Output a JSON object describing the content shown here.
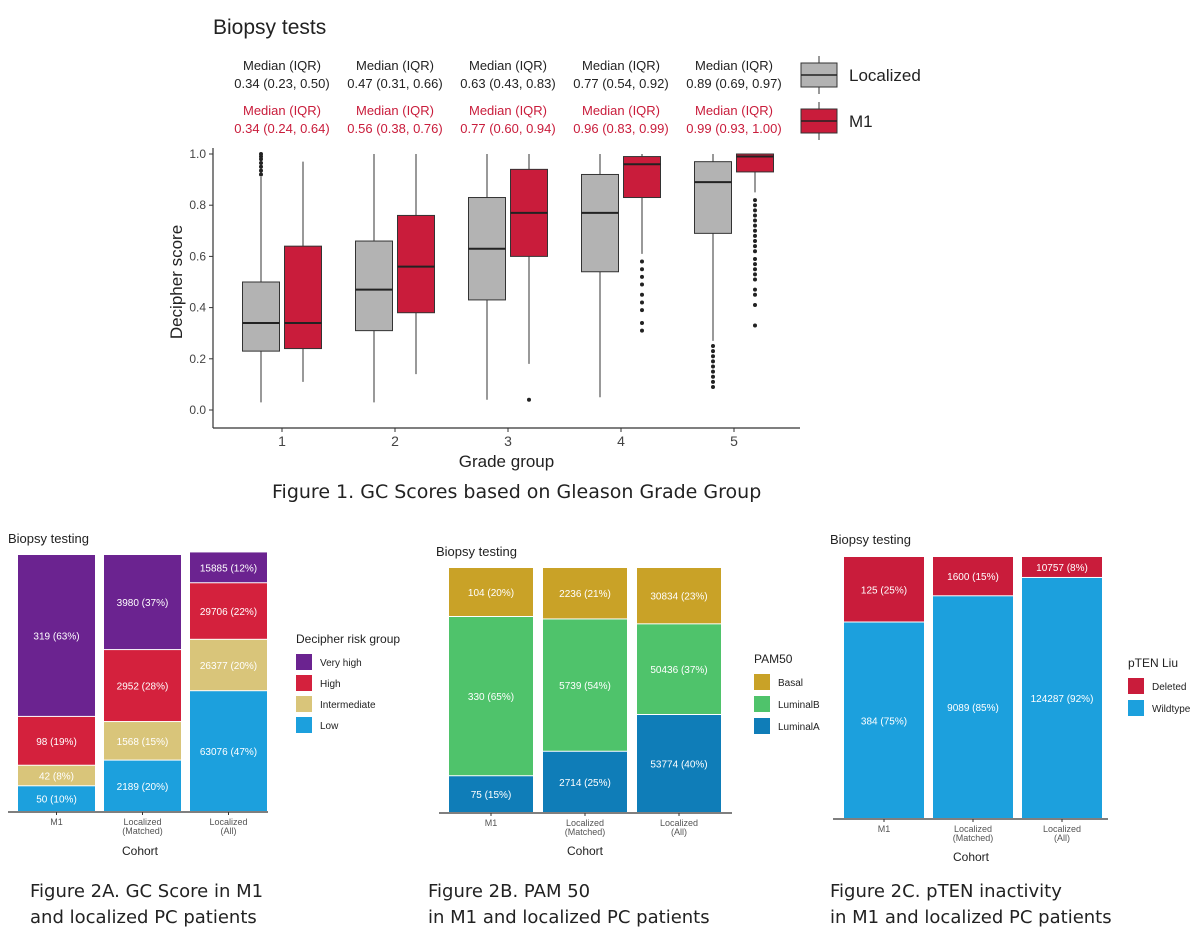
{
  "colors": {
    "localized": "#b3b3b3",
    "m1": "#c91c3b",
    "very_high": "#6b2390",
    "high": "#d4213d",
    "intermediate": "#d9c57a",
    "low": "#1ca0dd",
    "basal": "#c9a227",
    "luminal_b": "#4fc36b",
    "luminal_a": "#0f7db8",
    "deleted": "#c91c3b",
    "wildtype": "#1ca0dd",
    "median_red": "#c91c3b"
  },
  "figure1": {
    "caption": "Figure 1. GC Scores based on Gleason Grade Group"
  },
  "figure2a": {
    "caption_line1": "Figure 2A. GC Score in M1",
    "caption_line2": "and localized PC patients"
  },
  "figure2b": {
    "caption_line1": "Figure 2B.  PAM 50",
    "caption_line2": "in M1 and localized PC patients"
  },
  "figure2c": {
    "caption_line1": "Figure 2C. pTEN inactivity",
    "caption_line2": "in M1 and localized PC patients"
  },
  "chart_data": [
    {
      "type": "box",
      "title": "Biopsy tests",
      "xlabel": "Grade group",
      "ylabel": "Decipher score",
      "ylim": [
        0,
        1
      ],
      "yticks": [
        "0.0",
        "0.2",
        "0.4",
        "0.6",
        "0.8",
        "1.0"
      ],
      "categories": [
        "1",
        "2",
        "3",
        "4",
        "5"
      ],
      "legend": {
        "placement": "right",
        "entries": [
          "Localized",
          "M1"
        ]
      },
      "annotations": {
        "localized": [
          {
            "label": "Median (IQR)",
            "value": "0.34 (0.23, 0.50)"
          },
          {
            "label": "Median (IQR)",
            "value": "0.47 (0.31, 0.66)"
          },
          {
            "label": "Median (IQR)",
            "value": "0.63 (0.43, 0.83)"
          },
          {
            "label": "Median (IQR)",
            "value": "0.77 (0.54, 0.92)"
          },
          {
            "label": "Median (IQR)",
            "value": "0.89 (0.69, 0.97)"
          }
        ],
        "m1": [
          {
            "label": "Median (IQR)",
            "value": "0.34 (0.24, 0.64)"
          },
          {
            "label": "Median (IQR)",
            "value": "0.56 (0.38, 0.76)"
          },
          {
            "label": "Median (IQR)",
            "value": "0.77 (0.60, 0.94)"
          },
          {
            "label": "Median (IQR)",
            "value": "0.96 (0.83, 0.99)"
          },
          {
            "label": "Median (IQR)",
            "value": "0.99 (0.93, 1.00)"
          }
        ]
      },
      "series": [
        {
          "name": "Localized",
          "boxes": [
            {
              "q1": 0.23,
              "median": 0.34,
              "q3": 0.5,
              "whisker_low": 0.03,
              "whisker_high": 0.91,
              "outliers": [
                0.92,
                0.935,
                0.95,
                0.965,
                0.98,
                0.99,
                1.0
              ]
            },
            {
              "q1": 0.31,
              "median": 0.47,
              "q3": 0.66,
              "whisker_low": 0.03,
              "whisker_high": 1.0,
              "outliers": []
            },
            {
              "q1": 0.43,
              "median": 0.63,
              "q3": 0.83,
              "whisker_low": 0.04,
              "whisker_high": 1.0,
              "outliers": []
            },
            {
              "q1": 0.54,
              "median": 0.77,
              "q3": 0.92,
              "whisker_low": 0.05,
              "whisker_high": 1.0,
              "outliers": []
            },
            {
              "q1": 0.69,
              "median": 0.89,
              "q3": 0.97,
              "whisker_low": 0.27,
              "whisker_high": 1.0,
              "outliers": [
                0.09,
                0.11,
                0.13,
                0.15,
                0.17,
                0.19,
                0.21,
                0.23,
                0.25
              ]
            }
          ]
        },
        {
          "name": "M1",
          "boxes": [
            {
              "q1": 0.24,
              "median": 0.34,
              "q3": 0.64,
              "whisker_low": 0.11,
              "whisker_high": 0.97,
              "outliers": []
            },
            {
              "q1": 0.38,
              "median": 0.56,
              "q3": 0.76,
              "whisker_low": 0.14,
              "whisker_high": 1.0,
              "outliers": []
            },
            {
              "q1": 0.6,
              "median": 0.77,
              "q3": 0.94,
              "whisker_low": 0.18,
              "whisker_high": 1.0,
              "outliers": [
                0.04
              ]
            },
            {
              "q1": 0.83,
              "median": 0.96,
              "q3": 0.99,
              "whisker_low": 0.61,
              "whisker_high": 1.0,
              "outliers": [
                0.31,
                0.34,
                0.39,
                0.42,
                0.45,
                0.49,
                0.52,
                0.55,
                0.58
              ]
            },
            {
              "q1": 0.93,
              "median": 0.99,
              "q3": 1.0,
              "whisker_low": 0.85,
              "whisker_high": 1.0,
              "outliers": [
                0.33,
                0.41,
                0.45,
                0.47,
                0.51,
                0.53,
                0.55,
                0.57,
                0.59,
                0.62,
                0.64,
                0.66,
                0.68,
                0.7,
                0.72,
                0.74,
                0.76,
                0.78,
                0.8,
                0.82
              ]
            }
          ]
        }
      ]
    },
    {
      "type": "bar",
      "stacked": true,
      "title": "Biopsy testing",
      "xlabel": "Cohort",
      "categories": [
        "M1",
        "Localized (Matched)",
        "Localized (All)"
      ],
      "legend": {
        "title": "Decipher risk group",
        "placement": "right",
        "entries": [
          "Very high",
          "High",
          "Intermediate",
          "Low"
        ]
      },
      "series": [
        {
          "name": "Low",
          "values": [
            0.1,
            0.2,
            0.47
          ],
          "labels": [
            "50 (10%)",
            "2189 (20%)",
            "63076 (47%)"
          ]
        },
        {
          "name": "Intermediate",
          "values": [
            0.08,
            0.15,
            0.2
          ],
          "labels": [
            "42 (8%)",
            "1568 (15%)",
            "26377 (20%)"
          ]
        },
        {
          "name": "High",
          "values": [
            0.19,
            0.28,
            0.22
          ],
          "labels": [
            "98 (19%)",
            "2952 (28%)",
            "29706 (22%)"
          ]
        },
        {
          "name": "Very high",
          "values": [
            0.63,
            0.37,
            0.12
          ],
          "labels": [
            "319 (63%)",
            "3980 (37%)",
            "15885 (12%)"
          ]
        }
      ]
    },
    {
      "type": "bar",
      "stacked": true,
      "title": "Biopsy testing",
      "xlabel": "Cohort",
      "categories": [
        "M1",
        "Localized (Matched)",
        "Localized (All)"
      ],
      "legend": {
        "title": "PAM50",
        "placement": "right",
        "entries": [
          "Basal",
          "LuminalB",
          "LuminalA"
        ]
      },
      "series": [
        {
          "name": "LuminalA",
          "values": [
            0.15,
            0.25,
            0.4
          ],
          "labels": [
            "75 (15%)",
            "2714 (25%)",
            "53774 (40%)"
          ]
        },
        {
          "name": "LuminalB",
          "values": [
            0.65,
            0.54,
            0.37
          ],
          "labels": [
            "330 (65%)",
            "5739 (54%)",
            "50436 (37%)"
          ]
        },
        {
          "name": "Basal",
          "values": [
            0.2,
            0.21,
            0.23
          ],
          "labels": [
            "104 (20%)",
            "2236 (21%)",
            "30834 (23%)"
          ]
        }
      ]
    },
    {
      "type": "bar",
      "stacked": true,
      "title": "Biopsy testing",
      "xlabel": "Cohort",
      "categories": [
        "M1",
        "Localized (Matched)",
        "Localized (All)"
      ],
      "legend": {
        "title": "pTEN Liu",
        "placement": "right",
        "entries": [
          "Deleted",
          "Wildtype"
        ]
      },
      "series": [
        {
          "name": "Wildtype",
          "values": [
            0.75,
            0.85,
            0.92
          ],
          "labels": [
            "384 (75%)",
            "9089 (85%)",
            "124287 (92%)"
          ]
        },
        {
          "name": "Deleted",
          "values": [
            0.25,
            0.15,
            0.08
          ],
          "labels": [
            "125 (25%)",
            "1600 (15%)",
            "10757 (8%)"
          ]
        }
      ]
    }
  ]
}
